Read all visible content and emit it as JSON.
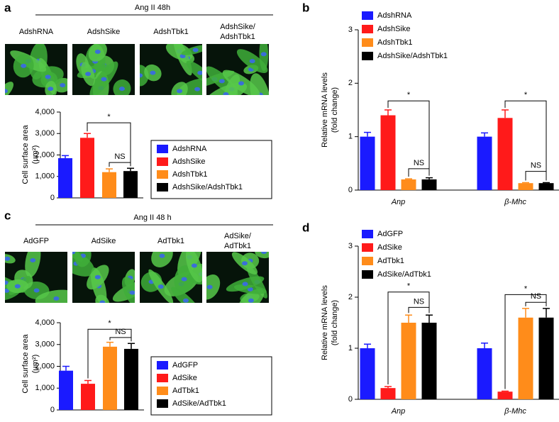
{
  "chart_data": [
    {
      "type": "bar",
      "label": "a",
      "header": "Ang II 48h",
      "images": [
        [
          "AdshRNA"
        ],
        [
          "AdshSike"
        ],
        [
          "AdshTbk1"
        ],
        [
          "AdshSike/",
          "AdshTbk1"
        ]
      ],
      "ylabel": [
        "Cell surface area",
        "(µm²)"
      ],
      "categories": [
        null
      ],
      "ylim": [
        0,
        4000
      ],
      "yticks": [
        0,
        {
          "value": 1000,
          "label": "1,000"
        },
        {
          "value": 2000,
          "label": "2,000"
        },
        {
          "value": 3000,
          "label": "3,000"
        },
        {
          "value": 4000,
          "label": "4,000"
        }
      ],
      "series": [
        {
          "name": "AdshRNA",
          "color": "#1a1aff",
          "values": [
            1850
          ],
          "errors": [
            120
          ]
        },
        {
          "name": "AdshSike",
          "color": "#ff1a1a",
          "values": [
            2800
          ],
          "errors": [
            200
          ]
        },
        {
          "name": "AdshTbk1",
          "color": "#ff8c1a",
          "values": [
            1200
          ],
          "errors": [
            150
          ]
        },
        {
          "name": "AdshSike/AdshTbk1",
          "color": "#000000",
          "values": [
            1250
          ],
          "errors": [
            130
          ]
        }
      ],
      "annotations": [
        "*",
        "NS"
      ]
    },
    {
      "type": "bar",
      "label": "b",
      "ylabel": [
        "Relative mRNA levels",
        "(fold change)"
      ],
      "categories": [
        "Anp",
        "β-Mhc"
      ],
      "ylim": [
        0,
        3
      ],
      "yticks": [
        0,
        1,
        2,
        3
      ],
      "series": [
        {
          "name": "AdshRNA",
          "color": "#1a1aff",
          "values": [
            1.0,
            1.0
          ],
          "errors": [
            0.08,
            0.07
          ]
        },
        {
          "name": "AdshSike",
          "color": "#ff1a1a",
          "values": [
            1.4,
            1.35
          ],
          "errors": [
            0.1,
            0.15
          ]
        },
        {
          "name": "AdshTbk1",
          "color": "#ff8c1a",
          "values": [
            0.2,
            0.13
          ],
          "errors": [
            0.01,
            0.01
          ]
        },
        {
          "name": "AdshSike/AdshTbk1",
          "color": "#000000",
          "values": [
            0.2,
            0.13
          ],
          "errors": [
            0.03,
            0.01
          ]
        }
      ],
      "annotations": [
        "*",
        "NS",
        "*",
        "NS"
      ]
    },
    {
      "type": "bar",
      "label": "c",
      "header": "Ang II 48 h",
      "images": [
        [
          "AdGFP"
        ],
        [
          "AdSike"
        ],
        [
          "AdTbk1"
        ],
        [
          "AdSike/",
          "AdTbk1"
        ]
      ],
      "ylabel": [
        "Cell surface area",
        "(µm²)"
      ],
      "categories": [
        null
      ],
      "ylim": [
        0,
        4000
      ],
      "yticks": [
        0,
        {
          "value": 1000,
          "label": "1,000"
        },
        {
          "value": 2000,
          "label": "2,000"
        },
        {
          "value": 3000,
          "label": "3,000"
        },
        {
          "value": 4000,
          "label": "4,000"
        }
      ],
      "series": [
        {
          "name": "AdGFP",
          "color": "#1a1aff",
          "values": [
            1800
          ],
          "errors": [
            200
          ]
        },
        {
          "name": "AdSike",
          "color": "#ff1a1a",
          "values": [
            1200
          ],
          "errors": [
            150
          ]
        },
        {
          "name": "AdTbk1",
          "color": "#ff8c1a",
          "values": [
            2900
          ],
          "errors": [
            200
          ]
        },
        {
          "name": "AdSike/AdTbk1",
          "color": "#000000",
          "values": [
            2800
          ],
          "errors": [
            250
          ]
        }
      ],
      "annotations": [
        "*",
        "NS"
      ]
    },
    {
      "type": "bar",
      "label": "d",
      "ylabel": [
        "Relative mRNA levels",
        "(fold change)"
      ],
      "categories": [
        "Anp",
        "β-Mhc"
      ],
      "ylim": [
        0,
        3
      ],
      "yticks": [
        0,
        1,
        2,
        3
      ],
      "series": [
        {
          "name": "AdGFP",
          "color": "#1a1aff",
          "values": [
            1.0,
            1.0
          ],
          "errors": [
            0.08,
            0.1
          ]
        },
        {
          "name": "AdSike",
          "color": "#ff1a1a",
          "values": [
            0.22,
            0.15
          ],
          "errors": [
            0.03,
            0.01
          ]
        },
        {
          "name": "AdTbk1",
          "color": "#ff8c1a",
          "values": [
            1.5,
            1.6
          ],
          "errors": [
            0.15,
            0.18
          ]
        },
        {
          "name": "AdSike/AdTbk1",
          "color": "#000000",
          "values": [
            1.5,
            1.6
          ],
          "errors": [
            0.15,
            0.18
          ]
        }
      ],
      "annotations": [
        "*",
        "NS",
        "*",
        "NS"
      ]
    }
  ]
}
